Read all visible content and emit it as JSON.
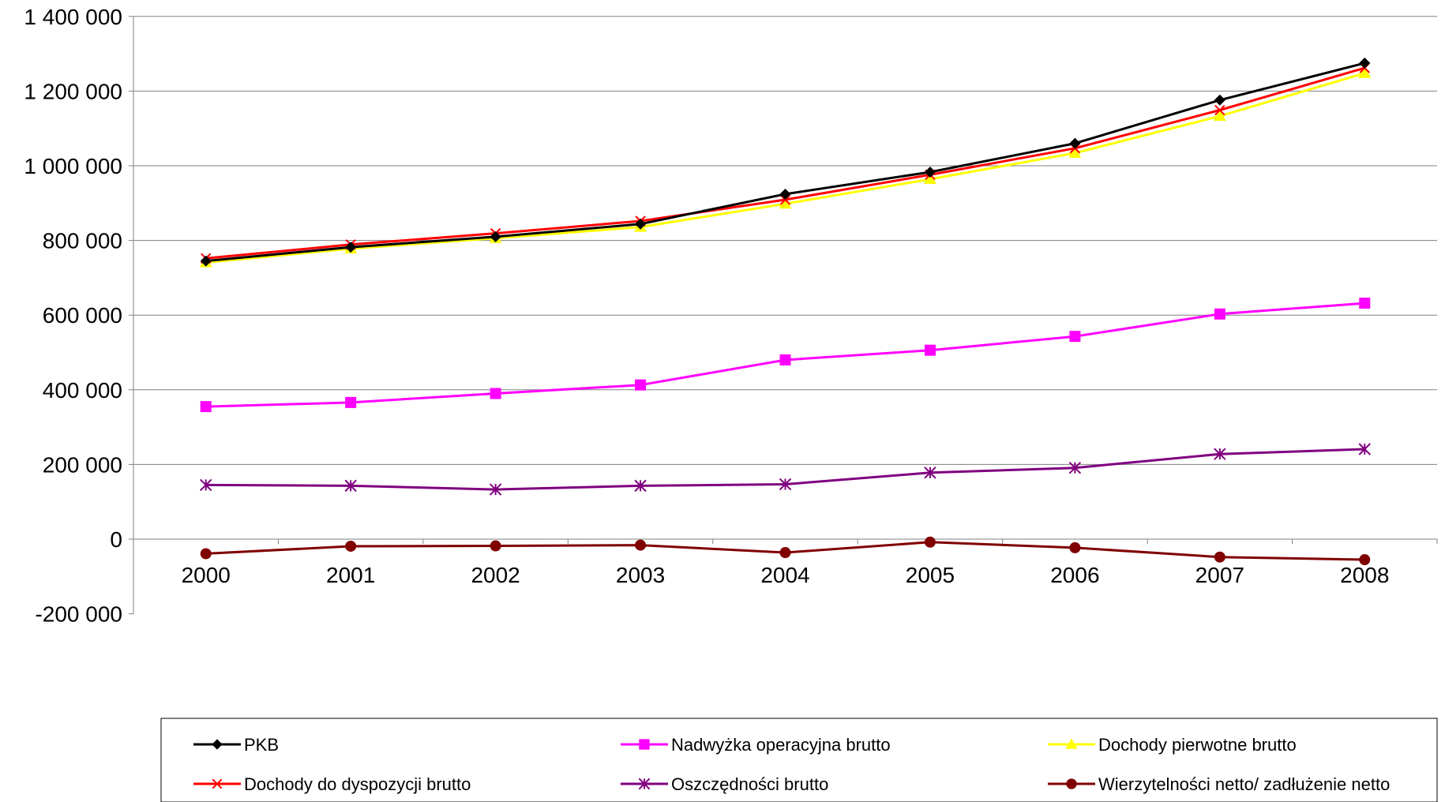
{
  "chart_data": {
    "type": "line",
    "categories": [
      "2000",
      "2001",
      "2002",
      "2003",
      "2004",
      "2005",
      "2006",
      "2007",
      "2008"
    ],
    "ylim": [
      -200000,
      1400000
    ],
    "yticks": [
      -200000,
      0,
      200000,
      400000,
      600000,
      800000,
      1000000,
      1200000,
      1400000
    ],
    "ytick_labels": [
      "-200 000",
      "0",
      "200 000",
      "400 000",
      "600 000",
      "800 000",
      "1 000 000",
      "1 200 000",
      "1 400 000"
    ],
    "grid": true,
    "legend_position": "bottom",
    "series": [
      {
        "name": "PKB",
        "color": "#000000",
        "marker": "diamond",
        "values": [
          745000,
          782000,
          810000,
          844000,
          924000,
          983000,
          1060000,
          1176000,
          1275000
        ]
      },
      {
        "name": "Nadwyżka operacyjna brutto",
        "color": "#ff00ff",
        "marker": "square",
        "values": [
          355000,
          366000,
          390000,
          413000,
          480000,
          506000,
          543000,
          603000,
          632000
        ]
      },
      {
        "name": "Dochody pierwotne brutto",
        "color": "#ffff00",
        "marker": "triangle",
        "values": [
          741000,
          778000,
          806000,
          836000,
          898000,
          964000,
          1034000,
          1133000,
          1248000
        ]
      },
      {
        "name": "Dochody do dyspozycji brutto",
        "color": "#ff0000",
        "marker": "x",
        "values": [
          752000,
          789000,
          819000,
          852000,
          909000,
          976000,
          1047000,
          1149000,
          1262000
        ]
      },
      {
        "name": "Oszczędności brutto",
        "color": "#800080",
        "marker": "star",
        "values": [
          145000,
          143000,
          133000,
          143000,
          147000,
          178000,
          191000,
          228000,
          241000
        ]
      },
      {
        "name": "Wierzytelności netto/ zadłużenie netto",
        "color": "#800000",
        "marker": "circle",
        "values": [
          -39000,
          -19000,
          -18000,
          -16000,
          -36000,
          -8000,
          -23000,
          -48000,
          -55000
        ]
      }
    ]
  }
}
